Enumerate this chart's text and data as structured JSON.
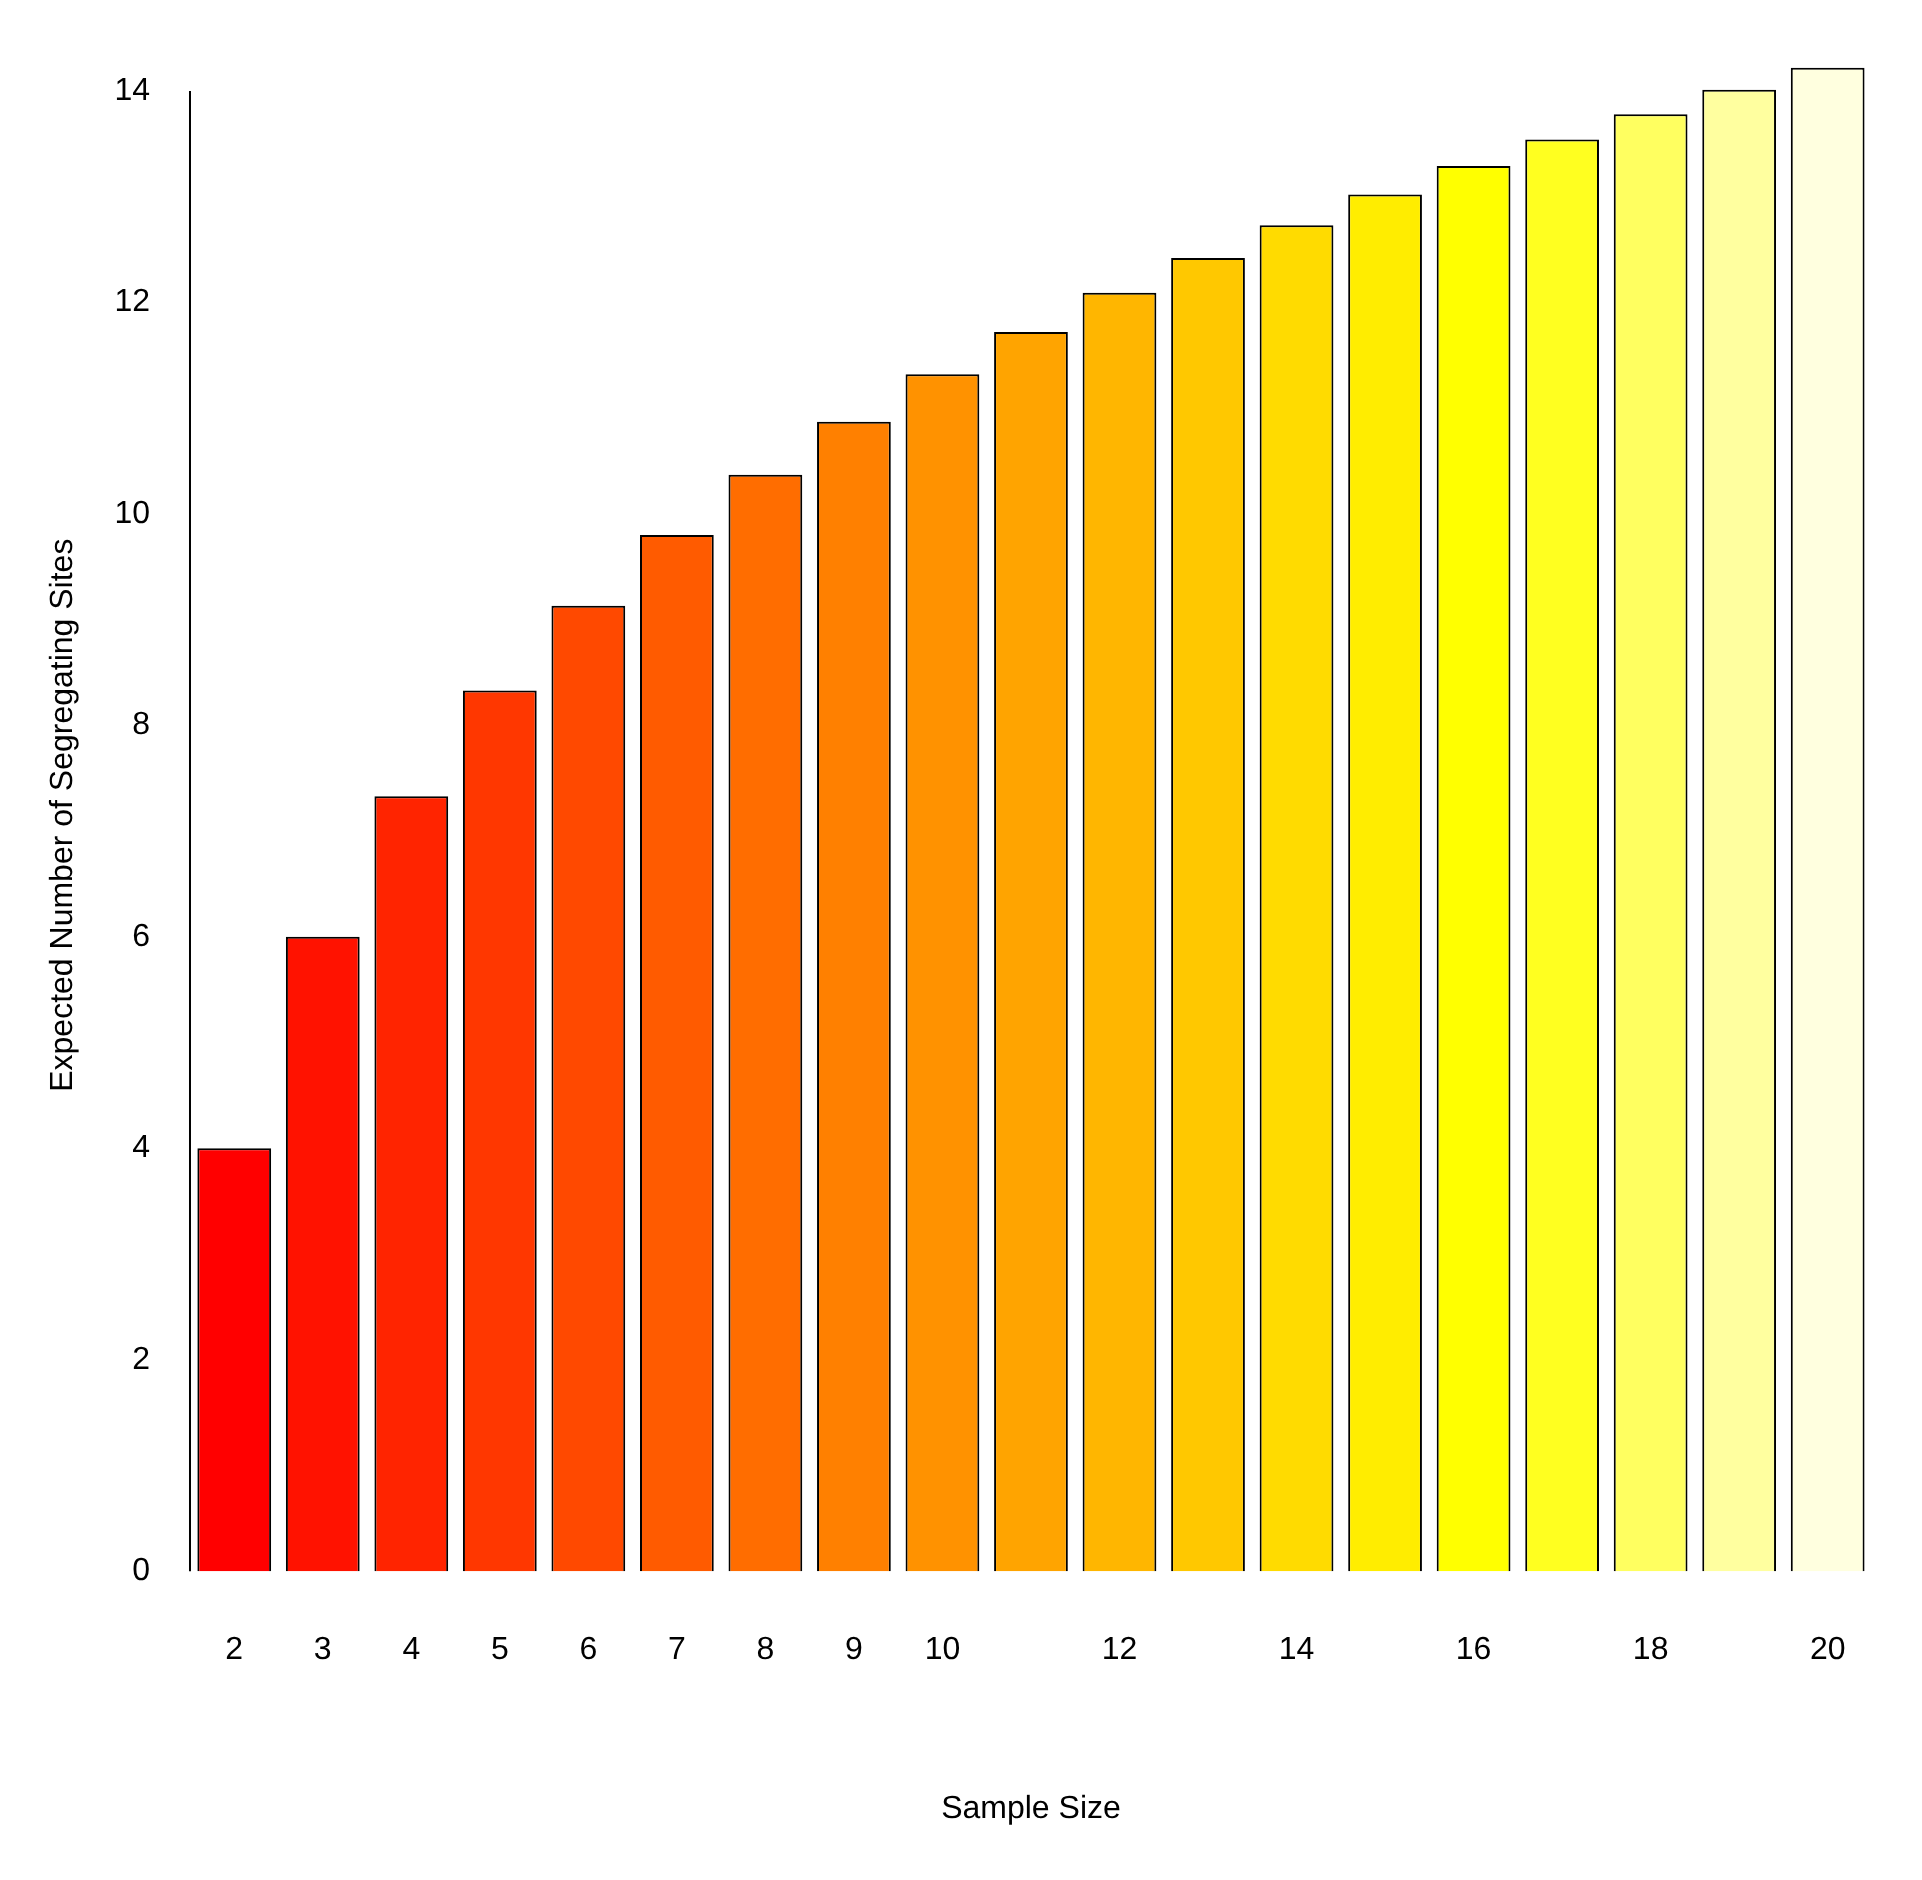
{
  "chart_data": {
    "type": "bar",
    "xlabel": "Sample Size",
    "ylabel": "Expected Number of Segregating Sites",
    "categories": [
      "2",
      "3",
      "4",
      "5",
      "6",
      "7",
      "8",
      "9",
      "10",
      null,
      "12",
      null,
      "14",
      null,
      "16",
      null,
      "18",
      null,
      "20"
    ],
    "values": [
      4.0,
      6.0,
      7.33,
      8.33,
      9.13,
      9.8,
      10.37,
      10.87,
      11.32,
      11.72,
      12.09,
      12.42,
      12.73,
      13.02,
      13.29,
      13.54,
      13.78,
      14.01,
      14.22
    ],
    "colors": [
      "#ff0000",
      "#ff1200",
      "#ff2400",
      "#ff3700",
      "#ff4900",
      "#ff5b00",
      "#ff6d00",
      "#ff8000",
      "#ff9200",
      "#ffa400",
      "#ffb600",
      "#ffc800",
      "#ffdb00",
      "#ffed00",
      "#ffff00",
      "#ffff20",
      "#ffff60",
      "#ffff9f",
      "#ffffdf"
    ],
    "ylim": [
      0,
      14.3
    ],
    "yticks": [
      0,
      2,
      4,
      6,
      8,
      10,
      12,
      14
    ],
    "grid": false
  }
}
